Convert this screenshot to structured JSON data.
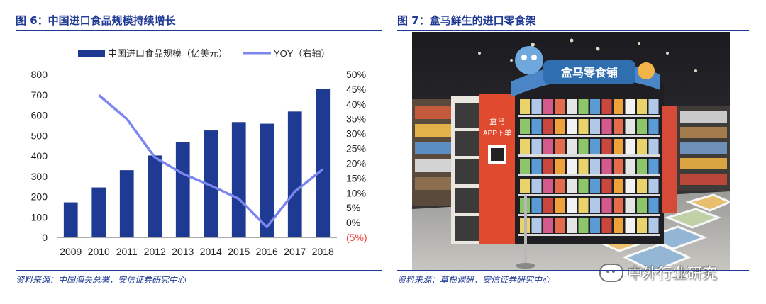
{
  "left_panel": {
    "title": "图 6：中国进口食品规模持续增长",
    "source": "资料来源：中国海关总署，安信证券研究中心"
  },
  "right_panel": {
    "title": "图 7：盒马鲜生的进口零食架",
    "source": "资料来源：草根调研，安信证券研究中心",
    "photo": {
      "sign_main": "盒马零食铺",
      "app_sign_line1": "盒马",
      "app_sign_line2": "APP下单"
    }
  },
  "watermark": {
    "text": "中外行业研究",
    "icon": "wechat-icon"
  },
  "chart_data": {
    "type": "bar",
    "categories": [
      "2009",
      "2010",
      "2011",
      "2012",
      "2013",
      "2014",
      "2015",
      "2016",
      "2017",
      "2018"
    ],
    "series": [
      {
        "name": "中国进口食品规模（亿美元）",
        "type": "bar",
        "axis": "left",
        "color": "#1f3a93",
        "values": [
          172,
          245,
          330,
          402,
          466,
          525,
          566,
          558,
          618,
          730
        ]
      },
      {
        "name": "YOY（右轴）",
        "type": "line",
        "axis": "right",
        "color": "#7b86ee",
        "values": [
          null,
          43,
          35,
          22,
          16.5,
          12.5,
          8,
          -1.5,
          10.5,
          18
        ]
      }
    ],
    "left_axis": {
      "ylim": [
        0,
        800
      ],
      "ticks": [
        "0",
        "100",
        "200",
        "300",
        "400",
        "500",
        "600",
        "700",
        "800"
      ]
    },
    "right_axis": {
      "ylim": [
        -5,
        50
      ],
      "ticks": [
        "(5%)",
        "0%",
        "5%",
        "10%",
        "15%",
        "20%",
        "25%",
        "30%",
        "35%",
        "40%",
        "45%",
        "50%"
      ],
      "negative_color": "#e8453c"
    },
    "legend_position": "top",
    "grid": false
  }
}
